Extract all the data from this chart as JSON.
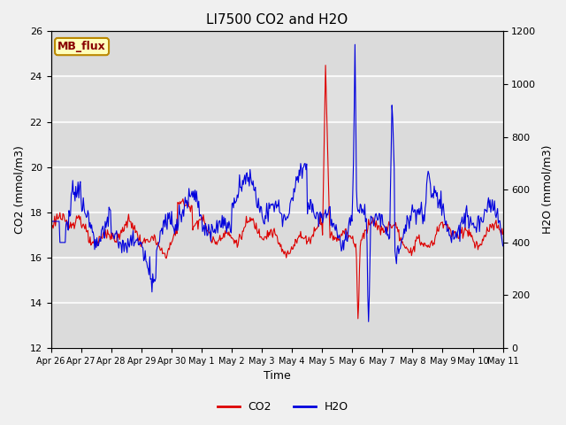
{
  "title": "LI7500 CO2 and H2O",
  "xlabel": "Time",
  "ylabel_left": "CO2 (mmol/m3)",
  "ylabel_right": "H2O (mmol/m3)",
  "ylim_left": [
    12,
    26
  ],
  "ylim_right": [
    0,
    1200
  ],
  "yticks_left": [
    12,
    14,
    16,
    18,
    20,
    22,
    24,
    26
  ],
  "yticks_right": [
    0,
    200,
    400,
    600,
    800,
    1000,
    1200
  ],
  "fig_bg_color": "#f0f0f0",
  "plot_bg_color": "#e0e0e0",
  "grid_color": "#f8f8f8",
  "co2_color": "#dd0000",
  "h2o_color": "#0000dd",
  "legend_label_co2": "CO2",
  "legend_label_h2o": "H2O",
  "watermark_text": "MB_flux",
  "watermark_bg": "#ffffbb",
  "watermark_border": "#bb8800",
  "watermark_text_color": "#880000",
  "tick_labels": [
    "Apr 26",
    "Apr 27",
    "Apr 28",
    "Apr 29",
    "Apr 30",
    "May 1",
    "May 2",
    "May 3",
    "May 4",
    "May 5",
    "May 6",
    "May 7",
    "May 8",
    "May 9",
    "May 10",
    "May 11"
  ]
}
